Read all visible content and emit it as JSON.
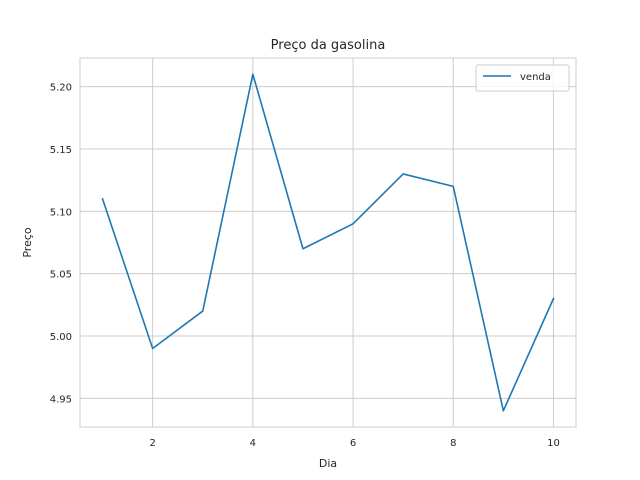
{
  "chart_data": {
    "type": "line",
    "title": "Preço da gasolina",
    "xlabel": "Dia",
    "ylabel": "Preço",
    "x": [
      1,
      2,
      3,
      4,
      5,
      6,
      7,
      8,
      9,
      10
    ],
    "series": [
      {
        "name": "venda",
        "values": [
          5.11,
          4.99,
          5.02,
          5.21,
          5.07,
          5.09,
          5.13,
          5.12,
          4.94,
          5.03
        ],
        "color": "#1f77b4"
      }
    ],
    "xlim": [
      0.55,
      10.45
    ],
    "ylim": [
      4.927,
      5.223
    ],
    "xticks": [
      2,
      4,
      6,
      8,
      10
    ],
    "xtick_labels": [
      "2",
      "4",
      "6",
      "8",
      "10"
    ],
    "yticks": [
      4.95,
      5.0,
      5.05,
      5.1,
      5.15,
      5.2
    ],
    "ytick_labels": [
      "4.95",
      "5.00",
      "5.05",
      "5.10",
      "5.15",
      "5.20"
    ],
    "grid": true,
    "legend_position": "top-right"
  }
}
